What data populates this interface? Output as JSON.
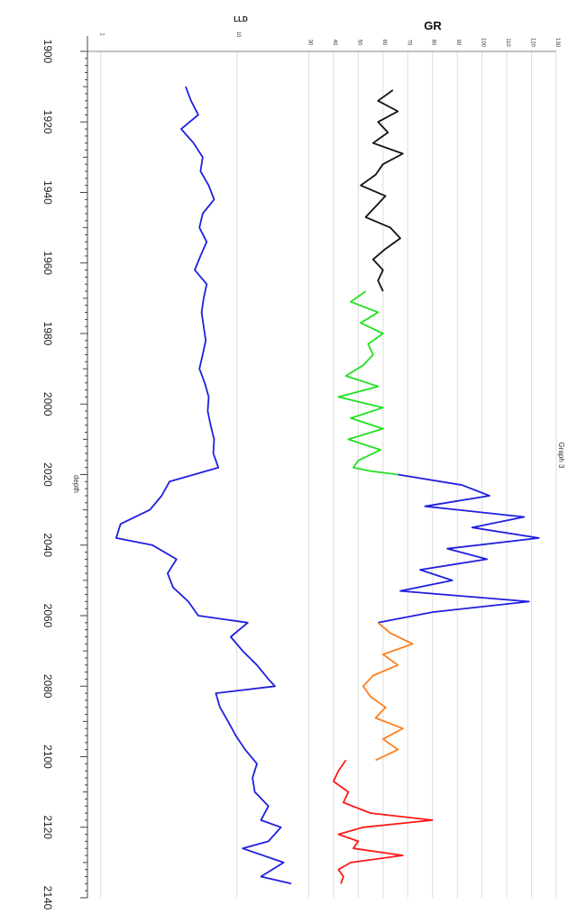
{
  "chart_data": {
    "type": "line",
    "orientation": "rotated-90-clockwise",
    "title": "Graph 3",
    "depth_axis": {
      "label": "depth",
      "range": [
        1900,
        2140
      ],
      "ticks": [
        1900,
        1920,
        1940,
        1960,
        1980,
        2000,
        2020,
        2040,
        2060,
        2080,
        2100,
        2120,
        2140
      ],
      "tick_labels": [
        "1900",
        "1920",
        "1940",
        "1960",
        "1980",
        "2000",
        "2020",
        "2040",
        "2060",
        "2080",
        "2100",
        "2120",
        "2140"
      ]
    },
    "lld_axis": {
      "label": "LLD",
      "scale": "log",
      "range": [
        0.8,
        30
      ],
      "ticks": [
        1,
        10
      ],
      "tick_labels": [
        "1",
        "10"
      ]
    },
    "gr_axis": {
      "label": "GR",
      "scale": "linear",
      "range": [
        20,
        130
      ],
      "ticks": [
        30,
        40,
        50,
        60,
        70,
        80,
        90,
        100,
        110,
        120,
        130
      ],
      "tick_labels": [
        "30",
        "40",
        "50",
        "60",
        "70",
        "80",
        "90",
        "100",
        "110",
        "120",
        "130"
      ]
    },
    "grid": true,
    "series": [
      {
        "axis": "lld",
        "color": "#1f1fe0",
        "points": [
          [
            1910,
            4.2
          ],
          [
            1914,
            4.6
          ],
          [
            1918,
            5.2
          ],
          [
            1922,
            3.9
          ],
          [
            1926,
            4.8
          ],
          [
            1930,
            5.6
          ],
          [
            1934,
            5.4
          ],
          [
            1938,
            6.2
          ],
          [
            1942,
            6.8
          ],
          [
            1946,
            5.6
          ],
          [
            1950,
            5.3
          ],
          [
            1954,
            6
          ],
          [
            1958,
            5.4
          ],
          [
            1962,
            4.9
          ],
          [
            1966,
            6
          ],
          [
            1970,
            5.7
          ],
          [
            1974,
            5.5
          ],
          [
            1978,
            5.7
          ],
          [
            1982,
            5.9
          ],
          [
            1986,
            5.6
          ],
          [
            1990,
            5.3
          ],
          [
            1994,
            5.8
          ],
          [
            1998,
            6.2
          ],
          [
            2002,
            6.1
          ],
          [
            2006,
            6.4
          ],
          [
            2010,
            6.8
          ],
          [
            2014,
            6.7
          ],
          [
            2018,
            7.3
          ],
          [
            2022,
            3.2
          ],
          [
            2026,
            2.8
          ],
          [
            2030,
            2.3
          ],
          [
            2034,
            1.4
          ],
          [
            2038,
            1.3
          ],
          [
            2040,
            2.4
          ],
          [
            2044,
            3.6
          ],
          [
            2048,
            3.1
          ],
          [
            2052,
            3.4
          ],
          [
            2056,
            4.4
          ],
          [
            2060,
            5.2
          ],
          [
            2062,
            12
          ],
          [
            2066,
            9
          ],
          [
            2070,
            11
          ],
          [
            2074,
            14
          ],
          [
            2078,
            17
          ],
          [
            2080,
            19
          ],
          [
            2082,
            7
          ],
          [
            2086,
            7.5
          ],
          [
            2090,
            8.6
          ],
          [
            2094,
            9.8
          ],
          [
            2098,
            11.5
          ],
          [
            2102,
            14
          ],
          [
            2106,
            13
          ],
          [
            2110,
            13.5
          ],
          [
            2114,
            17
          ],
          [
            2118,
            15
          ],
          [
            2120,
            21
          ],
          [
            2124,
            17
          ],
          [
            2126,
            11
          ],
          [
            2130,
            22
          ],
          [
            2134,
            15
          ],
          [
            2136,
            25
          ]
        ]
      },
      {
        "axis": "gr",
        "color": "#111111",
        "points": [
          [
            1911,
            64
          ],
          [
            1914,
            58
          ],
          [
            1917,
            66
          ],
          [
            1920,
            58
          ],
          [
            1923,
            62
          ],
          [
            1926,
            56
          ],
          [
            1929,
            68
          ],
          [
            1932,
            60
          ],
          [
            1935,
            57
          ],
          [
            1938,
            51
          ],
          [
            1941,
            61
          ],
          [
            1944,
            57
          ],
          [
            1947,
            53
          ],
          [
            1950,
            63
          ],
          [
            1953,
            67
          ],
          [
            1956,
            61
          ],
          [
            1959,
            56
          ],
          [
            1962,
            60
          ],
          [
            1965,
            58
          ],
          [
            1968,
            60
          ]
        ]
      },
      {
        "axis": "gr",
        "color": "#22e022",
        "points": [
          [
            1968,
            53
          ],
          [
            1971,
            47
          ],
          [
            1974,
            58
          ],
          [
            1977,
            51
          ],
          [
            1980,
            60
          ],
          [
            1983,
            54
          ],
          [
            1986,
            56
          ],
          [
            1989,
            52
          ],
          [
            1992,
            45
          ],
          [
            1995,
            58
          ],
          [
            1998,
            42
          ],
          [
            2001,
            60
          ],
          [
            2004,
            47
          ],
          [
            2007,
            60
          ],
          [
            2010,
            46
          ],
          [
            2013,
            59
          ],
          [
            2016,
            50
          ],
          [
            2018,
            48
          ],
          [
            2019,
            55
          ],
          [
            2020,
            66
          ]
        ]
      },
      {
        "axis": "gr",
        "color": "#1f1fe0",
        "points": [
          [
            2020,
            66
          ],
          [
            2023,
            92
          ],
          [
            2026,
            103
          ],
          [
            2029,
            77
          ],
          [
            2032,
            117
          ],
          [
            2035,
            96
          ],
          [
            2038,
            123
          ],
          [
            2041,
            86
          ],
          [
            2044,
            102
          ],
          [
            2047,
            75
          ],
          [
            2050,
            88
          ],
          [
            2053,
            67
          ],
          [
            2056,
            119
          ],
          [
            2059,
            80
          ],
          [
            2062,
            58
          ]
        ]
      },
      {
        "axis": "gr",
        "color": "#ff7f1e",
        "points": [
          [
            2062,
            58
          ],
          [
            2065,
            63
          ],
          [
            2068,
            72
          ],
          [
            2071,
            60
          ],
          [
            2074,
            66
          ],
          [
            2077,
            56
          ],
          [
            2080,
            52
          ],
          [
            2083,
            55
          ],
          [
            2086,
            61
          ],
          [
            2089,
            57
          ],
          [
            2092,
            68
          ],
          [
            2095,
            60
          ],
          [
            2098,
            66
          ],
          [
            2101,
            57
          ]
        ]
      },
      {
        "axis": "gr",
        "color": "#ff1a1a",
        "points": [
          [
            2101,
            45
          ],
          [
            2104,
            42
          ],
          [
            2107,
            40
          ],
          [
            2110,
            46
          ],
          [
            2113,
            44
          ],
          [
            2116,
            55
          ],
          [
            2118,
            80
          ],
          [
            2120,
            52
          ],
          [
            2122,
            42
          ],
          [
            2124,
            50
          ],
          [
            2126,
            48
          ],
          [
            2128,
            68
          ],
          [
            2130,
            47
          ],
          [
            2132,
            42
          ],
          [
            2134,
            44
          ],
          [
            2136,
            43
          ]
        ]
      }
    ]
  }
}
